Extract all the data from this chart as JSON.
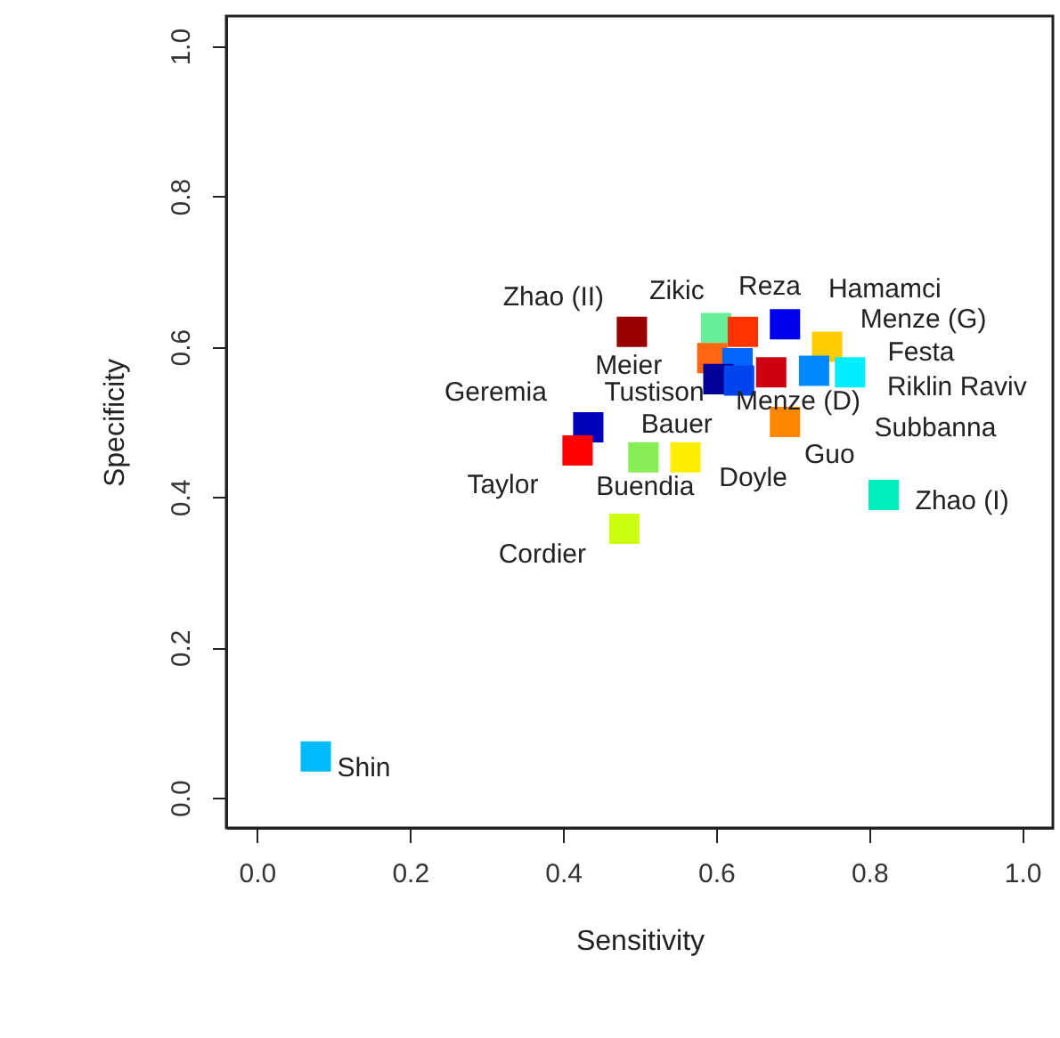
{
  "chart_data": {
    "type": "scatter",
    "xlabel": "Sensitivity",
    "ylabel": "Specificity",
    "xlim": [
      -0.04,
      1.04
    ],
    "ylim": [
      -0.04,
      1.04
    ],
    "xticks": [
      {
        "value": 0,
        "label": "0.0"
      },
      {
        "value": 0.2,
        "label": "0.2"
      },
      {
        "value": 0.4,
        "label": "0.4"
      },
      {
        "value": 0.6,
        "label": "0.6"
      },
      {
        "value": 0.8,
        "label": "0.8"
      },
      {
        "value": 1,
        "label": "1.0"
      }
    ],
    "yticks": [
      {
        "value": 0,
        "label": "0.0"
      },
      {
        "value": 0.2,
        "label": "0.2"
      },
      {
        "value": 0.4,
        "label": "0.4"
      },
      {
        "value": 0.6,
        "label": "0.6"
      },
      {
        "value": 0.8,
        "label": "0.8"
      },
      {
        "value": 1,
        "label": "1.0"
      }
    ],
    "grid": false,
    "marker": "square",
    "x": [
      0.49,
      0.6,
      0.635,
      0.69,
      0.745,
      0.728,
      0.775,
      0.595,
      0.628,
      0.603,
      0.63,
      0.672,
      0.69,
      0.433,
      0.419,
      0.505,
      0.56,
      0.819,
      0.48,
      0.077
    ],
    "values": [
      0.62,
      0.625,
      0.62,
      0.63,
      0.6,
      0.568,
      0.566,
      0.585,
      0.578,
      0.557,
      0.555,
      0.566,
      0.5,
      0.493,
      0.462,
      0.453,
      0.453,
      0.403,
      0.358,
      0.055
    ],
    "colors": [
      "#990000",
      "#66ee99",
      "#ff3300",
      "#0000ee",
      "#ffcc00",
      "#0088ff",
      "#00eeff",
      "#ff6611",
      "#0066ff",
      "#000099",
      "#0044ee",
      "#cc0011",
      "#ff8800",
      "#0000bb",
      "#ff0000",
      "#88ee55",
      "#ffee00",
      "#00eebb",
      "#ccff11",
      "#00bbff"
    ],
    "annotations": [
      {
        "text": "Zhao (II)",
        "x": 0.49,
        "y": 0.62
      },
      {
        "text": "Zikic",
        "x": 0.6,
        "y": 0.625
      },
      {
        "text": "Reza",
        "x": 0.635,
        "y": 0.62
      },
      {
        "text": "Hamamci",
        "x": 0.69,
        "y": 0.63
      },
      {
        "text": "Menze (G)",
        "x": 0.745,
        "y": 0.6
      },
      {
        "text": "Festa",
        "x": 0.728,
        "y": 0.568
      },
      {
        "text": "Riklin Raviv",
        "x": 0.775,
        "y": 0.566
      },
      {
        "text": "Meier",
        "x": 0.595,
        "y": 0.585
      },
      {
        "text": "Menze (D)",
        "x": 0.628,
        "y": 0.578
      },
      {
        "text": "Tustison",
        "x": 0.603,
        "y": 0.557
      },
      "Subbanna",
      {
        "text": "Bauer",
        "x": 0.672,
        "y": 0.566
      },
      {
        "text": "Guo",
        "x": 0.69,
        "y": 0.5
      },
      {
        "text": "Geremia",
        "x": 0.433,
        "y": 0.493
      },
      {
        "text": "Taylor",
        "x": 0.419,
        "y": 0.462
      },
      {
        "text": "Buendia",
        "x": 0.505,
        "y": 0.453
      },
      {
        "text": "Doyle",
        "x": 0.56,
        "y": 0.453
      },
      {
        "text": "Zhao (I)",
        "x": 0.819,
        "y": 0.403
      },
      {
        "text": "Cordier",
        "x": 0.48,
        "y": 0.358
      },
      {
        "text": "Shin",
        "x": 0.077,
        "y": 0.055
      }
    ]
  }
}
